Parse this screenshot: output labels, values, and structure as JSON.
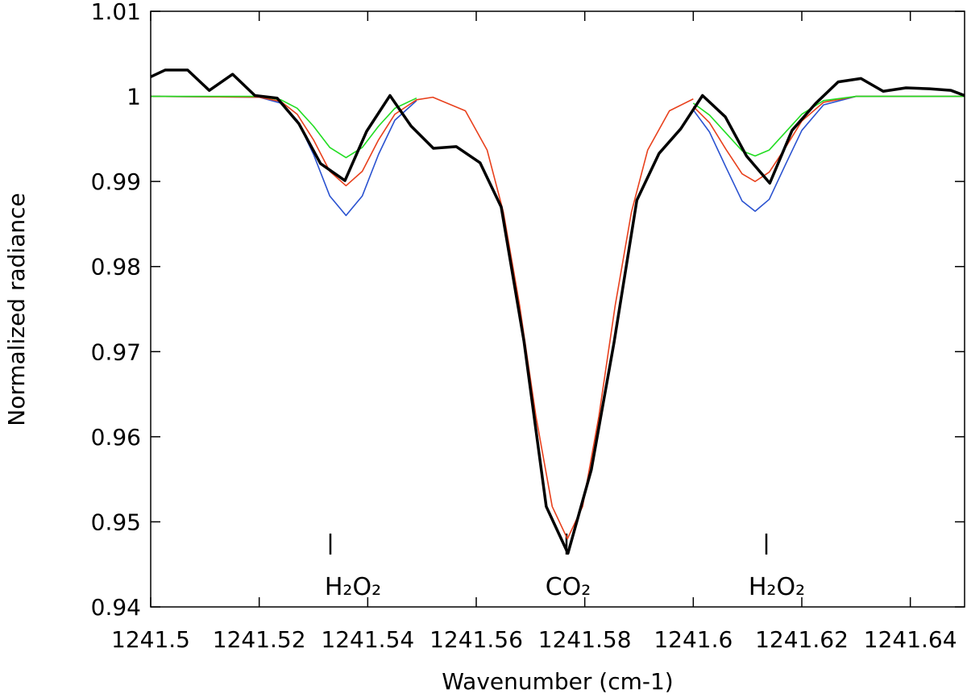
{
  "chart_data": {
    "type": "line",
    "xlabel": "Wavenumber (cm-1)",
    "ylabel": "Normalized radiance",
    "xlim": [
      1241.5,
      1241.65
    ],
    "xticks": [
      1241.5,
      1241.52,
      1241.54,
      1241.56,
      1241.58,
      1241.6,
      1241.62,
      1241.64
    ],
    "ylim": [
      0.94,
      1.01
    ],
    "yticks": [
      0.94,
      0.95,
      0.96,
      0.97,
      0.98,
      0.99,
      1,
      1.01
    ],
    "annotations": [
      "H₂O₂",
      "CO₂",
      "H₂O₂"
    ],
    "series": [
      {
        "color": "#2a52d0",
        "width": 1.6,
        "x": [
          1241.5,
          1241.52,
          1241.524,
          1241.527,
          1241.53,
          1241.533,
          1241.536,
          1241.539,
          1241.542,
          1241.545,
          1241.549,
          1241.575,
          1241.6,
          1241.603,
          1241.606,
          1241.609,
          1241.6114,
          1241.614,
          1241.617,
          1241.62,
          1241.624,
          1241.63,
          1241.65
        ],
        "values": [
          1.0,
          0.9999,
          0.9992,
          0.9972,
          0.9932,
          0.9883,
          0.986,
          0.9883,
          0.9932,
          0.9972,
          0.9995,
          null,
          0.9984,
          0.9958,
          0.9917,
          0.9877,
          0.9865,
          0.9879,
          0.992,
          0.996,
          0.999,
          1.0,
          1.0
        ]
      },
      {
        "color": "#e8401c",
        "width": 1.6,
        "x": [
          1241.5,
          1241.52,
          1241.524,
          1241.527,
          1241.53,
          1241.533,
          1241.536,
          1241.539,
          1241.542,
          1241.545,
          1241.549,
          1241.552,
          1241.558,
          1241.562,
          1241.565,
          1241.568,
          1241.571,
          1241.574,
          1241.5768,
          1241.5796,
          1241.5826,
          1241.5856,
          1241.5886,
          1241.5916,
          1241.5956,
          1241.6,
          1241.6,
          1241.6,
          1241.603,
          1241.606,
          1241.609,
          1241.6114,
          1241.614,
          1241.617,
          1241.62,
          1241.624,
          1241.63,
          1241.65
        ],
        "values": [
          1.0,
          0.9999,
          0.9994,
          0.9979,
          0.9949,
          0.9912,
          0.9895,
          0.9912,
          0.9949,
          0.9979,
          0.9996,
          0.9999,
          0.9983,
          0.9937,
          0.9864,
          0.9754,
          0.9624,
          0.9518,
          0.948,
          0.9518,
          0.9624,
          0.9754,
          0.9864,
          0.9937,
          0.9983,
          0.9997,
          null,
          0.9988,
          0.9969,
          0.9938,
          0.9909,
          0.99,
          0.9911,
          0.994,
          0.9971,
          0.9993,
          1.0,
          1.0
        ]
      },
      {
        "color": "#22dd22",
        "width": 1.6,
        "x": [
          1241.5,
          1241.52,
          1241.524,
          1241.527,
          1241.53,
          1241.533,
          1241.536,
          1241.539,
          1241.542,
          1241.545,
          1241.549,
          1241.575,
          1241.6,
          1241.603,
          1241.606,
          1241.609,
          1241.6114,
          1241.614,
          1241.617,
          1241.62,
          1241.624,
          1241.63,
          1241.65
        ],
        "values": [
          1.0,
          1.0,
          0.9996,
          0.9986,
          0.9965,
          0.994,
          0.9928,
          0.994,
          0.9965,
          0.9986,
          0.9998,
          null,
          0.9992,
          0.9978,
          0.9957,
          0.9936,
          0.993,
          0.9937,
          0.9958,
          0.9979,
          0.9995,
          1.0,
          1.0
        ]
      },
      {
        "color": "#000000",
        "width": 3.5,
        "x": [
          1241.5,
          1241.5027,
          1241.5068,
          1241.5108,
          1241.5151,
          1241.5192,
          1241.5233,
          1241.5273,
          1241.5313,
          1241.5358,
          1241.5398,
          1241.5441,
          1241.548,
          1241.5521,
          1241.5563,
          1241.5607,
          1241.5646,
          1241.5688,
          1241.5729,
          1241.5769,
          1241.5812,
          1241.5854,
          1241.5896,
          1241.5937,
          1241.5977,
          1241.6017,
          1241.6059,
          1241.6098,
          1241.6141,
          1241.6182,
          1241.6226,
          1241.6267,
          1241.6309,
          1241.635,
          1241.6392,
          1241.6435,
          1241.6475,
          1241.65
        ],
        "values": [
          1.0023,
          1.0031,
          1.0031,
          1.0007,
          1.0026,
          1.0001,
          0.9998,
          0.9968,
          0.9921,
          0.9901,
          0.9959,
          1.0001,
          0.9965,
          0.9939,
          0.9941,
          0.9922,
          0.987,
          0.9712,
          0.9518,
          0.9463,
          0.9561,
          0.9711,
          0.9878,
          0.9933,
          0.9962,
          1.0001,
          0.9976,
          0.993,
          0.9898,
          0.996,
          0.9992,
          1.0017,
          1.0021,
          1.0006,
          1.001,
          1.0009,
          1.0007,
          1.0001
        ]
      }
    ]
  }
}
